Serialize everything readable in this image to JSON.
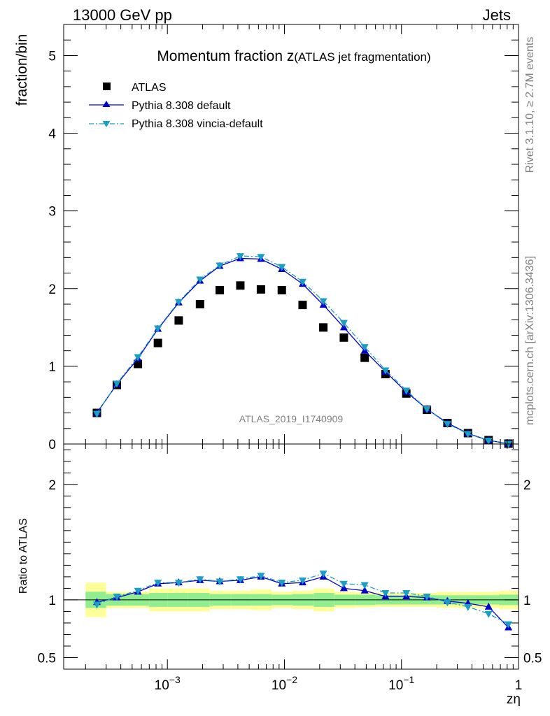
{
  "header": {
    "energy_label": "13000 GeV pp",
    "category_label": "Jets"
  },
  "side": {
    "rivet_label": "Rivet 3.1.10, ≥ 2.7M events",
    "source_label": "mcplots.cern.ch [arXiv:1306.3436]"
  },
  "chart_data": [
    {
      "type": "scatter",
      "title_main": "Momentum fraction ",
      "title_z": "z",
      "title_sub": "(ATLAS jet fragmentation)",
      "ylabel": "fraction/bin",
      "analysis_label": "ATLAS_2019_I1740909",
      "x_scale": "log",
      "xlim": [
        0.00013,
        1.0
      ],
      "ylim": [
        0,
        5.4
      ],
      "y_ticks": [
        "0",
        "1",
        "2",
        "3",
        "4",
        "5"
      ],
      "legend_position": "top-left",
      "x": [
        0.00025,
        0.00037,
        0.00056,
        0.00083,
        0.00125,
        0.0019,
        0.0028,
        0.0042,
        0.0063,
        0.0095,
        0.0143,
        0.0215,
        0.0322,
        0.0485,
        0.073,
        0.11,
        0.165,
        0.247,
        0.37,
        0.555,
        0.82
      ],
      "series": [
        {
          "name": "ATLAS",
          "marker": "square",
          "color": "#000000",
          "values": [
            0.4,
            0.76,
            1.03,
            1.3,
            1.59,
            1.8,
            1.98,
            2.04,
            1.99,
            1.98,
            1.79,
            1.5,
            1.37,
            1.11,
            0.9,
            0.65,
            0.44,
            0.27,
            0.14,
            0.05,
            0.005
          ]
        },
        {
          "name": "Pythia 8.308 default",
          "marker": "triangle-up",
          "line": "solid",
          "color": "#0000cc",
          "values": [
            0.4,
            0.77,
            1.1,
            1.48,
            1.82,
            2.1,
            2.29,
            2.39,
            2.38,
            2.25,
            2.06,
            1.79,
            1.5,
            1.2,
            0.93,
            0.67,
            0.45,
            0.27,
            0.135,
            0.047,
            0.0038
          ]
        },
        {
          "name": "Pythia 8.308 vincia-default",
          "marker": "triangle-down",
          "line": "dash-dot",
          "color": "#1a9fc4",
          "values": [
            0.39,
            0.78,
            1.12,
            1.49,
            1.83,
            2.12,
            2.3,
            2.42,
            2.41,
            2.28,
            2.09,
            1.84,
            1.56,
            1.25,
            0.95,
            0.69,
            0.45,
            0.26,
            0.131,
            0.044,
            0.004
          ]
        }
      ]
    },
    {
      "type": "scatter",
      "ylabel": "Ratio to ATLAS",
      "xlabel": "zη",
      "x_scale": "log",
      "xlim": [
        0.00013,
        1.0
      ],
      "ylim": [
        0.4,
        2.35
      ],
      "y_ticks": [
        "0.5",
        "1",
        "2"
      ],
      "x_ticks": [
        "10",
        "10",
        "10",
        "1"
      ],
      "x_tick_exponents": [
        "−3",
        "−2",
        "−1",
        ""
      ],
      "reference_line": 1.0,
      "bands": {
        "colors": {
          "inner": "#90ee90",
          "outer": "#ffff99"
        },
        "x_edges": [
          0.0002,
          0.0003,
          0.00045,
          0.0007,
          0.001,
          0.0015,
          0.0023,
          0.0035,
          0.0052,
          0.0078,
          0.0118,
          0.0178,
          0.0267,
          0.04,
          0.06,
          0.09,
          0.135,
          0.2,
          0.3,
          0.45,
          0.68,
          1.0
        ],
        "inner_half_width": [
          0.07,
          0.05,
          0.05,
          0.06,
          0.06,
          0.06,
          0.05,
          0.05,
          0.05,
          0.045,
          0.05,
          0.06,
          0.045,
          0.045,
          0.04,
          0.04,
          0.04,
          0.04,
          0.04,
          0.04,
          0.045
        ],
        "outer_half_width": [
          0.15,
          0.07,
          0.07,
          0.1,
          0.1,
          0.1,
          0.08,
          0.08,
          0.09,
          0.07,
          0.08,
          0.1,
          0.07,
          0.065,
          0.06,
          0.06,
          0.06,
          0.07,
          0.07,
          0.07,
          0.08
        ]
      },
      "series": [
        {
          "name": "Pythia 8.308 default",
          "values": [
            0.98,
            1.02,
            1.07,
            1.14,
            1.15,
            1.17,
            1.16,
            1.17,
            1.2,
            1.14,
            1.15,
            1.2,
            1.1,
            1.08,
            1.03,
            1.03,
            1.02,
            0.99,
            0.97,
            0.94,
            0.76
          ]
        },
        {
          "name": "Pythia 8.308 vincia-default",
          "values": [
            0.96,
            1.03,
            1.08,
            1.15,
            1.15,
            1.18,
            1.16,
            1.18,
            1.21,
            1.15,
            1.17,
            1.23,
            1.14,
            1.13,
            1.06,
            1.06,
            1.03,
            0.98,
            0.94,
            0.88,
            0.79
          ]
        }
      ]
    }
  ]
}
